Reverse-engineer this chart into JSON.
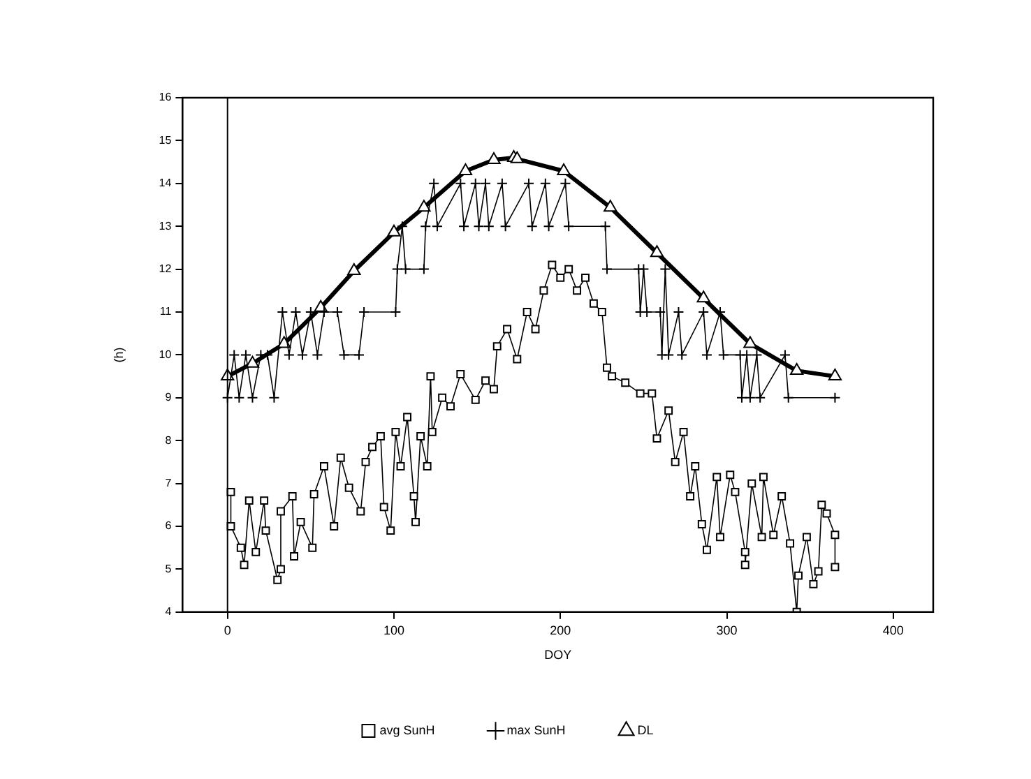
{
  "chart_data": {
    "type": "line",
    "xlabel": "DOY",
    "ylabel": "(h)",
    "xlim": [
      -27,
      424
    ],
    "ylim": [
      4,
      16
    ],
    "xticks": [
      0,
      100,
      200,
      300,
      400
    ],
    "yticks": [
      4,
      5,
      6,
      7,
      8,
      9,
      10,
      11,
      12,
      13,
      14,
      15,
      16
    ],
    "grid": false,
    "legend": "bottom",
    "line_style": "solid",
    "ref_lines": [
      {
        "axis": "x",
        "value": 0
      }
    ],
    "series": [
      {
        "name": "avg SunH",
        "color": "#000000",
        "marker": "square",
        "x": [
          2,
          2,
          8,
          10,
          13,
          17,
          22,
          23,
          30,
          32,
          32,
          39,
          40,
          44,
          51,
          52,
          58,
          64,
          68,
          73,
          80,
          83,
          87,
          92,
          94,
          98,
          101,
          104,
          108,
          112,
          113,
          116,
          120,
          122,
          123,
          129,
          134,
          140,
          149,
          155,
          160,
          162,
          168,
          174,
          180,
          185,
          190,
          195,
          200,
          205,
          210,
          215,
          220,
          225,
          228,
          231,
          239,
          248,
          255,
          258,
          265,
          269,
          274,
          278,
          281,
          285,
          288,
          294,
          296,
          302,
          305,
          311,
          311,
          315,
          321,
          322,
          328,
          333,
          338,
          342,
          343,
          348,
          352,
          355,
          357,
          360,
          365,
          365
        ],
        "values": [
          6.8,
          6.0,
          5.5,
          5.1,
          6.6,
          5.4,
          6.6,
          5.9,
          4.75,
          5.0,
          6.35,
          6.7,
          5.3,
          6.1,
          5.5,
          6.75,
          7.4,
          6.0,
          7.6,
          6.9,
          6.35,
          7.5,
          7.85,
          8.1,
          6.45,
          5.9,
          8.2,
          7.4,
          8.55,
          6.7,
          6.1,
          8.1,
          7.4,
          9.5,
          8.2,
          9.0,
          8.8,
          9.55,
          8.95,
          9.4,
          9.2,
          10.2,
          10.6,
          9.9,
          11.0,
          10.6,
          11.5,
          12.1,
          11.8,
          12.0,
          11.5,
          11.8,
          11.2,
          11.0,
          9.7,
          9.5,
          9.35,
          9.1,
          9.1,
          8.05,
          8.7,
          7.5,
          8.2,
          6.7,
          7.4,
          6.05,
          5.45,
          7.15,
          5.75,
          7.2,
          6.8,
          5.4,
          5.1,
          7.0,
          5.75,
          7.15,
          5.8,
          6.7,
          5.6,
          4.0,
          4.85,
          5.75,
          4.65,
          4.95,
          6.5,
          6.3,
          5.8,
          5.05
        ]
      },
      {
        "name": "max SunH",
        "color": "#000000",
        "marker": "cross",
        "x": [
          0,
          4,
          7,
          11,
          15,
          20,
          24,
          28,
          33,
          37,
          41,
          45,
          50,
          54,
          58,
          66,
          70,
          79,
          82,
          101,
          102,
          105,
          107,
          118,
          119,
          124,
          126,
          140,
          142,
          149,
          151,
          155,
          157,
          165,
          167,
          181,
          183,
          191,
          193,
          203,
          205,
          227,
          228,
          247,
          248,
          250,
          252,
          260,
          261,
          263,
          265,
          271,
          273,
          286,
          288,
          296,
          298,
          308,
          309,
          312,
          314,
          318,
          320,
          335,
          337,
          365
        ],
        "values": [
          9,
          10,
          9,
          10,
          9,
          10,
          10,
          9,
          11,
          10,
          11,
          10,
          11,
          10,
          11,
          11,
          10,
          10,
          11,
          11,
          12,
          13,
          12,
          12,
          13,
          14,
          13,
          14,
          13,
          14,
          13,
          14,
          13,
          14,
          13,
          14,
          13,
          14,
          13,
          14,
          13,
          13,
          12,
          12,
          11,
          12,
          11,
          11,
          10,
          12,
          10,
          11,
          10,
          11,
          10,
          11,
          10,
          10,
          9,
          10,
          9,
          10,
          9,
          10,
          9,
          9
        ]
      },
      {
        "name": "DL",
        "color": "#000000",
        "marker": "triangle",
        "x": [
          0,
          15,
          34,
          56,
          76,
          100,
          118,
          143,
          160,
          172,
          174,
          202,
          230,
          258,
          286,
          314,
          342,
          365
        ],
        "values": [
          9.5,
          9.8,
          10.26,
          11.1,
          11.96,
          12.86,
          13.44,
          14.29,
          14.55,
          14.6,
          14.57,
          14.29,
          13.44,
          12.38,
          11.32,
          10.26,
          9.63,
          9.5
        ]
      }
    ]
  }
}
